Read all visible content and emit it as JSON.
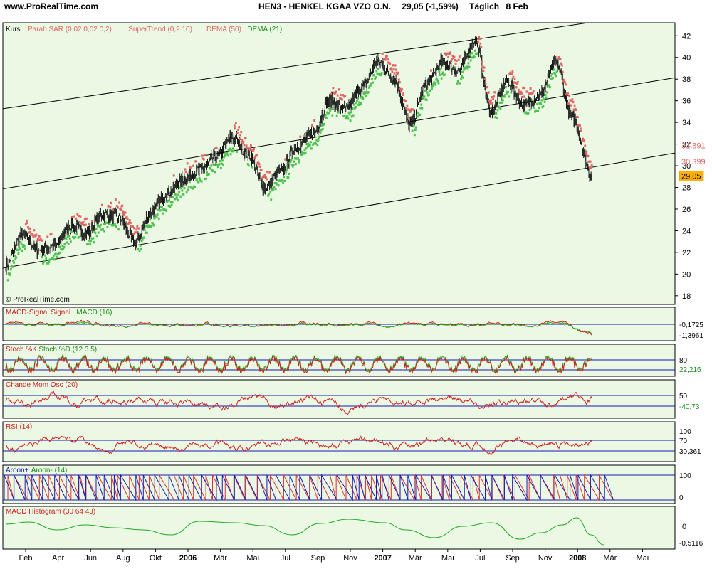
{
  "header": {
    "site": "www.ProRealTime.com",
    "title": "HEN3 - HENKEL KGAA VZO O.N.",
    "quote": "29,05 (-1,59%)",
    "interval": "Täglich",
    "date": "8 Feb"
  },
  "watermark": "© ProRealTime.com",
  "colors": {
    "panel_bg": "#eaf8e4",
    "candle": "#000000",
    "sar": "#e06464",
    "supertrend": "#e06464",
    "dema_red": "#e06464",
    "dema_green": "#50c050",
    "blue": "#1a1ab0",
    "price_badge": "#ffb000"
  },
  "chart_data": [
    {
      "type": "candlestick",
      "panel": "Kurs",
      "legend": [
        "Kurs",
        "Parab SAR (0,02 0,02 0,2)",
        "SuperTrend (0,9 10)",
        "DEMA (50)",
        "DEMA (21)"
      ],
      "x_ticks": [
        "Feb",
        "Apr",
        "Jun",
        "Aug",
        "Okt",
        "2006",
        "Mär",
        "Mai",
        "Jul",
        "Sep",
        "Nov",
        "2007",
        "Mär",
        "Mai",
        "Jul",
        "Sep",
        "Nov",
        "2008",
        "Mär",
        "Mai"
      ],
      "y_ticks": [
        18,
        20,
        22,
        24,
        26,
        28,
        30,
        32,
        34,
        36,
        38,
        40,
        42
      ],
      "ylim": [
        17.2,
        43.2
      ],
      "price_path": [
        {
          "x": "Feb 2005",
          "y": 20.8
        },
        {
          "x": "Mär 2005",
          "y": 23.6
        },
        {
          "x": "Apr 2005",
          "y": 22.2
        },
        {
          "x": "Mai 2005",
          "y": 22.6
        },
        {
          "x": "Jun 2005",
          "y": 24.5
        },
        {
          "x": "Jul 2005",
          "y": 23.8
        },
        {
          "x": "Aug 2005",
          "y": 25.5
        },
        {
          "x": "Sep 2005",
          "y": 25.2
        },
        {
          "x": "Okt 2005",
          "y": 22.9
        },
        {
          "x": "Nov 2005",
          "y": 25.8
        },
        {
          "x": "Dez 2005",
          "y": 27.5
        },
        {
          "x": "Jan 2006",
          "y": 28.8
        },
        {
          "x": "Feb 2006",
          "y": 29.6
        },
        {
          "x": "Mär 2006",
          "y": 30.8
        },
        {
          "x": "Apr 2006",
          "y": 32.6
        },
        {
          "x": "Mai 2006",
          "y": 31.0
        },
        {
          "x": "Jun 2006",
          "y": 28.0
        },
        {
          "x": "Jul 2006",
          "y": 29.5
        },
        {
          "x": "Aug 2006",
          "y": 31.8
        },
        {
          "x": "Sep 2006",
          "y": 33.0
        },
        {
          "x": "Okt 2006",
          "y": 36.0
        },
        {
          "x": "Nov 2006",
          "y": 35.2
        },
        {
          "x": "Dez 2006",
          "y": 37.2
        },
        {
          "x": "Jan 2007",
          "y": 39.6
        },
        {
          "x": "Feb 2007",
          "y": 38.0
        },
        {
          "x": "Mär 2007",
          "y": 33.8
        },
        {
          "x": "Apr 2007",
          "y": 37.5
        },
        {
          "x": "Mai 2007",
          "y": 39.5
        },
        {
          "x": "Jun 2007",
          "y": 38.8
        },
        {
          "x": "Jul 2007",
          "y": 41.6
        },
        {
          "x": "Aug 2007",
          "y": 35.0
        },
        {
          "x": "Sep 2007",
          "y": 37.8
        },
        {
          "x": "Okt 2007",
          "y": 35.6
        },
        {
          "x": "Nov 2007",
          "y": 36.5
        },
        {
          "x": "Dez 2007",
          "y": 39.5
        },
        {
          "x": "Jan 2008",
          "y": 34.5
        },
        {
          "x": "8 Feb 2008",
          "y": 29.05
        }
      ],
      "channel_lines": [
        {
          "start": {
            "x": "Feb 2005",
            "y": 20.6
          },
          "end": {
            "x": "Feb 2008",
            "y": 29.8
          }
        },
        {
          "start": {
            "x": "Feb 2005",
            "y": 27.9
          },
          "end": {
            "x": "Feb 2008",
            "y": 36.8
          }
        },
        {
          "start": {
            "x": "Feb 2005",
            "y": 35.3
          },
          "end": {
            "x": "Feb 2008",
            "y": 43.2
          }
        }
      ],
      "value_labels": [
        {
          "value": "31,891",
          "y": 31.89,
          "color": "#e06464"
        },
        {
          "value": "30,399",
          "y": 30.4,
          "color": "#e06464"
        },
        {
          "value": "29,05",
          "y": 29.05,
          "color": "#000000",
          "badge": true
        }
      ]
    },
    {
      "type": "line",
      "panel": "MACD",
      "legend": [
        "MACD-Signal Signal",
        "MACD (16)"
      ],
      "value_labels": [
        "-0,1725",
        "-1,3961"
      ]
    },
    {
      "type": "line",
      "panel": "Stochastic",
      "legend": [
        "Stoch %K",
        "Stoch %D (12 3 5)"
      ],
      "y_ticks": [
        "80"
      ],
      "value_labels": [
        "22,216"
      ]
    },
    {
      "type": "line",
      "panel": "Chande",
      "legend": [
        "Chande Mom Osc (20)"
      ],
      "y_ticks": [
        "50"
      ],
      "value_labels": [
        "-40,73"
      ]
    },
    {
      "type": "line",
      "panel": "RSI",
      "legend": [
        "RSI (14)"
      ],
      "y_ticks": [
        "100",
        "70"
      ],
      "value_labels": [
        "30,361"
      ]
    },
    {
      "type": "line",
      "panel": "Aroon",
      "legend": [
        "Aroon+",
        "Aroon- (14)"
      ],
      "y_ticks": [
        "100",
        "0"
      ]
    },
    {
      "type": "line",
      "panel": "MACD Histogram",
      "legend": [
        "MACD Histogram (30 64 43)"
      ],
      "y_ticks": [
        "0"
      ],
      "value_labels": [
        "-0,5116"
      ]
    }
  ]
}
